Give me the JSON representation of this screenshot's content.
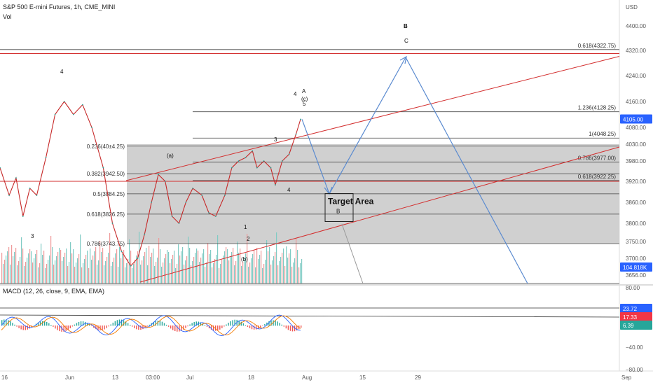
{
  "header": {
    "title": "S&P 500 E-mini Futures, 1h, CME_MINI",
    "vol_label": "Vol",
    "currency": "USD"
  },
  "macd": {
    "title": "MACD (12, 26, close, 9, EMA, EMA)",
    "ticks": [
      "80.00",
      "40.00",
      "−40.00",
      "−80.00"
    ],
    "badges": [
      {
        "text": "23.72",
        "color": "#2962ff"
      },
      {
        "text": "17.33",
        "color": "#f23645"
      },
      {
        "text": "6.39",
        "color": "#26a69a"
      }
    ]
  },
  "chart_data": {
    "type": "line",
    "symbol": "S&P 500 E-mini Futures",
    "interval": "1h",
    "price_axis": {
      "ticks": [
        4400,
        4320,
        4240,
        4160,
        4080,
        4030,
        3980,
        3920,
        3860,
        3800,
        3750,
        3700,
        3656
      ],
      "tick_labels": [
        "4400.00",
        "4320.00",
        "4240.00",
        "4160.00",
        "4080.00",
        "4030.00",
        "3980.00",
        "3920.00",
        "3860.00",
        "3800.00",
        "3750.00",
        "3700.00",
        "3656.00"
      ]
    },
    "time_axis": {
      "tick_labels": [
        "16",
        "Jun",
        "13",
        "03:00",
        "Jul",
        "18",
        "Aug",
        "15",
        "29",
        "Sep"
      ]
    },
    "last_price": {
      "text": "4105.00",
      "value": 4105,
      "color": "#2962ff"
    },
    "volume_badge": {
      "text": "104.818K",
      "color": "#2962ff"
    },
    "price_path": [
      [
        0,
        3960
      ],
      [
        0.02,
        3880
      ],
      [
        0.035,
        3930
      ],
      [
        0.05,
        3820
      ],
      [
        0.065,
        3900
      ],
      [
        0.08,
        3880
      ],
      [
        0.1,
        3990
      ],
      [
        0.12,
        4120
      ],
      [
        0.14,
        4160
      ],
      [
        0.16,
        4120
      ],
      [
        0.18,
        4150
      ],
      [
        0.2,
        4080
      ],
      [
        0.225,
        3960
      ],
      [
        0.245,
        3800
      ],
      [
        0.265,
        3720
      ],
      [
        0.285,
        3680
      ],
      [
        0.3,
        3700
      ],
      [
        0.315,
        3770
      ],
      [
        0.33,
        3860
      ],
      [
        0.345,
        3940
      ],
      [
        0.36,
        3920
      ],
      [
        0.375,
        3820
      ],
      [
        0.39,
        3800
      ],
      [
        0.405,
        3860
      ],
      [
        0.42,
        3900
      ],
      [
        0.44,
        3880
      ],
      [
        0.455,
        3830
      ],
      [
        0.47,
        3820
      ],
      [
        0.49,
        3880
      ],
      [
        0.505,
        3960
      ],
      [
        0.52,
        3980
      ],
      [
        0.535,
        3990
      ],
      [
        0.55,
        4010
      ],
      [
        0.56,
        3960
      ],
      [
        0.575,
        3980
      ],
      [
        0.59,
        3960
      ],
      [
        0.6,
        3910
      ],
      [
        0.615,
        3980
      ],
      [
        0.63,
        4000
      ],
      [
        0.645,
        4060
      ],
      [
        0.655,
        4105
      ]
    ],
    "fib_left": [
      {
        "label": "0.236(40±4.25)",
        "value": 4024.25
      },
      {
        "label": "0.382(3942.50)",
        "value": 3942.5
      },
      {
        "label": "0.5(3884.25)",
        "value": 3884.25
      },
      {
        "label": "0.618(3826.25)",
        "value": 3826.25
      },
      {
        "label": "0.786(3743.75)",
        "value": 3743.75
      }
    ],
    "fib_right": [
      {
        "label": "0.618(4322.75)",
        "value": 4322.75
      },
      {
        "label": "1.236(4128.25)",
        "value": 4128.25
      },
      {
        "label": "1(4048.25)",
        "value": 4048.25
      },
      {
        "label": "0.786(3977.00)",
        "value": 3977
      },
      {
        "label": "0.618(3922.25)",
        "value": 3922.25
      }
    ],
    "horizontal_lines": [
      {
        "value": 4310,
        "color": "#d32f2f"
      },
      {
        "value": 3920,
        "color": "#d32f2f"
      }
    ],
    "target_box": {
      "label": "Target Area",
      "sublabel": "B",
      "high": 3885,
      "low": 3805
    },
    "wave_labels": [
      "4",
      "3",
      "(a)",
      "(b)",
      "1",
      "2",
      "3",
      "4",
      "4",
      "A",
      "(c)",
      "5",
      "B",
      "C"
    ],
    "zone": {
      "high": 4030,
      "low": 3743.75,
      "color": "#c8c8c8"
    }
  }
}
